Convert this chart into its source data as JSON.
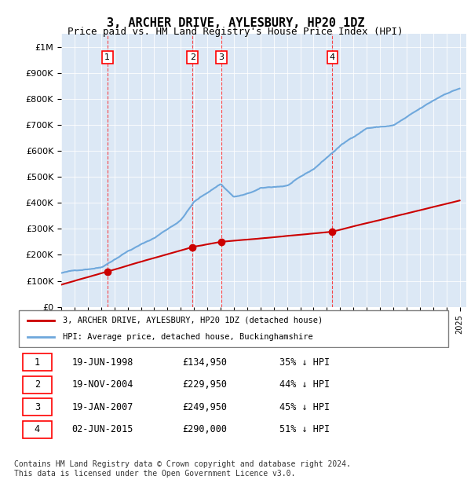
{
  "title": "3, ARCHER DRIVE, AYLESBURY, HP20 1DZ",
  "subtitle": "Price paid vs. HM Land Registry's House Price Index (HPI)",
  "hpi_color": "#6fa8dc",
  "price_color": "#cc0000",
  "background_color": "#dce8f5",
  "plot_bg": "#dce8f5",
  "ylim": [
    0,
    1050000
  ],
  "yticks": [
    0,
    100000,
    200000,
    300000,
    400000,
    500000,
    600000,
    700000,
    800000,
    900000,
    1000000
  ],
  "ytick_labels": [
    "£0",
    "£100K",
    "£200K",
    "£300K",
    "£400K",
    "£500K",
    "£600K",
    "£700K",
    "£800K",
    "£900K",
    "£1M"
  ],
  "sales": [
    {
      "num": 1,
      "date": "19-JUN-1998",
      "year": 1998.47,
      "price": 134950,
      "pct": "35%",
      "label": "£134,950"
    },
    {
      "num": 2,
      "date": "19-NOV-2004",
      "year": 2004.89,
      "price": 229950,
      "pct": "44%",
      "label": "£229,950"
    },
    {
      "num": 3,
      "date": "19-JAN-2007",
      "year": 2007.05,
      "price": 249950,
      "pct": "45%",
      "label": "£249,950"
    },
    {
      "num": 4,
      "date": "02-JUN-2015",
      "year": 2015.42,
      "price": 290000,
      "pct": "51%",
      "label": "£290,000"
    }
  ],
  "legend_label_red": "3, ARCHER DRIVE, AYLESBURY, HP20 1DZ (detached house)",
  "legend_label_blue": "HPI: Average price, detached house, Buckinghamshire",
  "footer": "Contains HM Land Registry data © Crown copyright and database right 2024.\nThis data is licensed under the Open Government Licence v3.0.",
  "table_rows": [
    [
      "1",
      "19-JUN-1998",
      "£134,950",
      "35% ↓ HPI"
    ],
    [
      "2",
      "19-NOV-2004",
      "£229,950",
      "44% ↓ HPI"
    ],
    [
      "3",
      "19-JAN-2007",
      "£249,950",
      "45% ↓ HPI"
    ],
    [
      "4",
      "02-JUN-2015",
      "£290,000",
      "51% ↓ HPI"
    ]
  ]
}
